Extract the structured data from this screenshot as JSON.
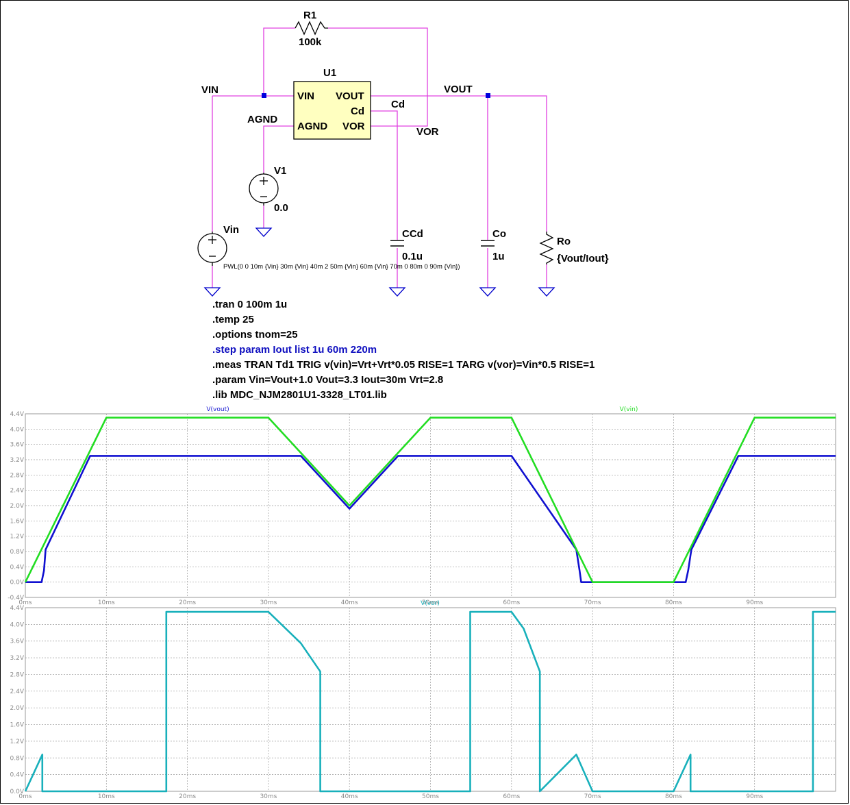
{
  "schematic": {
    "u1": {
      "ref": "U1",
      "pins": {
        "vin": "VIN",
        "vout": "VOUT",
        "cd": "Cd",
        "agnd": "AGND",
        "vor": "VOR"
      }
    },
    "r1": {
      "ref": "R1",
      "value": "100k"
    },
    "v1": {
      "ref": "V1",
      "value": "0.0"
    },
    "vin_src": {
      "ref": "Vin",
      "pwl": "PWL(0 0 10m {Vin} 30m {Vin} 40m 2 50m {Vin} 60m {Vin} 70m 0 80m 0 90m {Vin})"
    },
    "ccd": {
      "ref": "CCd",
      "value": "0.1u"
    },
    "co": {
      "ref": "Co",
      "value": "1u"
    },
    "ro": {
      "ref": "Ro",
      "value": "{Vout/Iout}"
    },
    "nets": {
      "vin": "VIN",
      "agnd": "AGND",
      "vout": "VOUT",
      "cd": "Cd",
      "vor": "VOR"
    }
  },
  "directives": [
    ".tran 0 100m 1u",
    ".temp 25",
    ".options tnom=25",
    ".step param Iout list 1u 60m 220m",
    ".meas TRAN Td1 TRIG v(vin)=Vrt+Vrt*0.05 RISE=1 TARG v(vor)=Vin*0.5 RISE=1",
    ".param Vin=Vout+1.0 Vout=3.3 Iout=30m Vrt=2.8",
    ".lib MDC_NJM2801U1-3328_LT01.lib"
  ],
  "colors": {
    "wire": "#e040e0",
    "component": "#000000",
    "ic_fill": "#ffffc0",
    "step_directive": "#1010c0",
    "vout": "#1010d0",
    "vin": "#22dd22",
    "vor": "#18b0bb",
    "grid": "#9a9a9a"
  },
  "chart_data": [
    {
      "type": "line",
      "title": "",
      "xlabel": "",
      "ylabel": "",
      "xlim": [
        0,
        100
      ],
      "ylim": [
        -0.4,
        4.4
      ],
      "x_unit": "ms",
      "x_ticks": [
        "0ms",
        "10ms",
        "20ms",
        "30ms",
        "40ms",
        "50ms",
        "60ms",
        "70ms",
        "80ms",
        "90ms"
      ],
      "y_ticks": [
        "-0.4V",
        "0.0V",
        "0.4V",
        "0.8V",
        "1.2V",
        "1.6V",
        "2.0V",
        "2.4V",
        "2.8V",
        "3.2V",
        "3.6V",
        "4.0V",
        "4.4V"
      ],
      "grid": true,
      "series": [
        {
          "name": "V(vout)",
          "color": "#1010d0",
          "x": [
            0,
            2.0,
            2.3,
            2.5,
            8.0,
            30.0,
            34.0,
            40.0,
            46.0,
            60.0,
            68.0,
            68.4,
            68.6,
            70.0,
            80.0,
            81.5,
            81.8,
            82.2,
            88.0,
            100.0
          ],
          "y": [
            0,
            0,
            0.3,
            0.85,
            3.3,
            3.3,
            3.3,
            1.92,
            3.3,
            3.3,
            0.85,
            0.3,
            0,
            0,
            0,
            0,
            0.3,
            0.85,
            3.3,
            3.3
          ]
        },
        {
          "name": "V(vin)",
          "color": "#22dd22",
          "x": [
            0,
            10,
            30,
            40,
            50,
            60,
            70,
            80,
            90,
            100
          ],
          "y": [
            0,
            4.3,
            4.3,
            2.0,
            4.3,
            4.3,
            0,
            0,
            4.3,
            4.3
          ]
        }
      ]
    },
    {
      "type": "line",
      "title": "",
      "xlabel": "",
      "ylabel": "",
      "xlim": [
        0,
        100
      ],
      "ylim": [
        0,
        4.4
      ],
      "x_unit": "ms",
      "x_ticks": [
        "0ms",
        "10ms",
        "20ms",
        "30ms",
        "40ms",
        "50ms",
        "60ms",
        "70ms",
        "80ms",
        "90ms"
      ],
      "y_ticks": [
        "0.0V",
        "0.4V",
        "0.8V",
        "1.2V",
        "1.6V",
        "2.0V",
        "2.4V",
        "2.8V",
        "3.2V",
        "3.6V",
        "4.0V",
        "4.4V"
      ],
      "grid": true,
      "series": [
        {
          "name": "V(vor)",
          "color": "#18b0bb",
          "x": [
            0,
            2.1,
            2.1,
            17.4,
            17.4,
            30.0,
            34.0,
            36.4,
            36.4,
            54.9,
            54.9,
            60.0,
            61.5,
            63.5,
            63.5,
            68.0,
            70.0,
            80.0,
            82.1,
            82.1,
            97.2,
            97.2,
            100.0
          ],
          "y": [
            0,
            0.88,
            0,
            0,
            4.3,
            4.3,
            3.55,
            2.87,
            0,
            0,
            4.3,
            4.3,
            3.9,
            2.87,
            0,
            0.88,
            0,
            0,
            0.88,
            0,
            0,
            4.3,
            4.3
          ]
        }
      ]
    }
  ]
}
